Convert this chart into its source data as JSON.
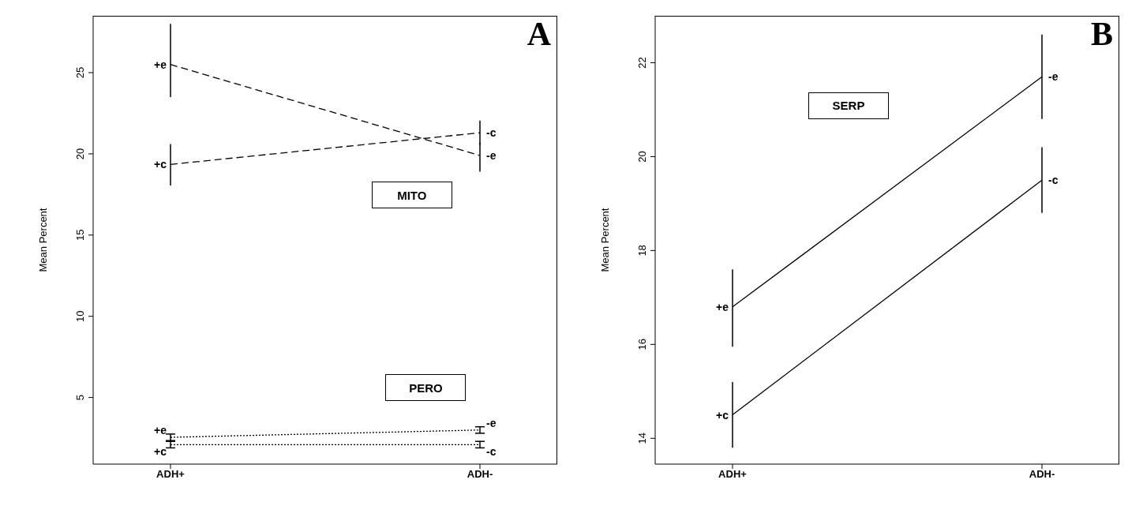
{
  "chart_data": [
    {
      "type": "line",
      "title": "A",
      "ylabel": "Mean Percent",
      "categories": [
        "ADH+",
        "ADH-"
      ],
      "ylim": [
        0.9,
        28.5
      ],
      "yticks": [
        5,
        10,
        15,
        20,
        25
      ],
      "grid": false,
      "marker": "none",
      "series": [
        {
          "color": "#000000",
          "line_style": "dashed",
          "values": [
            25.5,
            19.9
          ],
          "errors": [
            [
              23.5,
              28.0
            ],
            [
              18.9,
              20.7
            ]
          ]
        },
        {
          "color": "#000000",
          "line_style": "dashed",
          "values": [
            19.35,
            21.3
          ],
          "errors": [
            [
              18.05,
              20.6
            ],
            [
              20.55,
              22.05
            ]
          ]
        },
        {
          "color": "#000000",
          "line_style": "dotted",
          "values": [
            2.55,
            3.0
          ],
          "errors": [
            [
              2.35,
              2.75
            ],
            [
              2.8,
              3.2
            ]
          ]
        },
        {
          "color": "#000000",
          "line_style": "dotted",
          "values": [
            2.1,
            2.1
          ],
          "errors": [
            [
              1.9,
              2.3
            ],
            [
              1.9,
              2.3
            ]
          ]
        }
      ],
      "annotations": [
        "MITO",
        "PERO",
        {
          "text": "+e",
          "x": "ADH+",
          "y": 25.5
        },
        {
          "text": "+c",
          "x": "ADH+",
          "y": 19.35
        },
        {
          "text": "-c",
          "x": "ADH-",
          "y": 21.3
        },
        {
          "text": "-e",
          "x": "ADH-",
          "y": 19.9
        },
        {
          "text": "+e",
          "x": "ADH+",
          "y": 2.55
        },
        {
          "text": "+c",
          "x": "ADH+",
          "y": 2.1
        },
        {
          "text": "-e",
          "x": "ADH-",
          "y": 3.0
        },
        {
          "text": "-c",
          "x": "ADH-",
          "y": 2.1
        }
      ]
    },
    {
      "type": "line",
      "title": "B",
      "ylabel": "Mean Percent",
      "categories": [
        "ADH+",
        "ADH-"
      ],
      "ylim": [
        13.45,
        23.0
      ],
      "yticks": [
        14,
        16,
        18,
        20,
        22
      ],
      "grid": false,
      "marker": "none",
      "series": [
        {
          "color": "#000000",
          "line_style": "solid",
          "values": [
            16.8,
            21.7
          ],
          "errors": [
            [
              15.95,
              17.6
            ],
            [
              20.8,
              22.6
            ]
          ]
        },
        {
          "color": "#000000",
          "line_style": "solid",
          "values": [
            14.5,
            19.5
          ],
          "errors": [
            [
              13.8,
              15.2
            ],
            [
              18.8,
              20.2
            ]
          ]
        }
      ],
      "annotations": [
        "SERP",
        {
          "text": "+e",
          "x": "ADH+",
          "y": 16.8
        },
        {
          "text": "+c",
          "x": "ADH+",
          "y": 14.5
        },
        {
          "text": "-e",
          "x": "ADH-",
          "y": 21.7
        },
        {
          "text": "-c",
          "x": "ADH-",
          "y": 19.5
        }
      ]
    }
  ]
}
